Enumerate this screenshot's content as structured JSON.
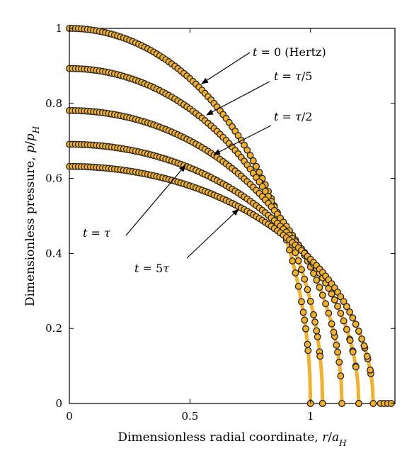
{
  "chart_data": {
    "type": "scatter",
    "title": "",
    "xlabel_parts": [
      "Dimensionless radial coordinate, ",
      "r",
      "/",
      "a",
      "H"
    ],
    "ylabel_parts": [
      "Dimensionless pressure, ",
      "p",
      "/",
      "p",
      "H"
    ],
    "xlim": [
      0,
      1.35
    ],
    "ylim": [
      0,
      1.0
    ],
    "x_ticks": [
      0,
      0.5,
      1
    ],
    "x_tick_labels": [
      "0",
      "0.5",
      "1"
    ],
    "y_ticks": [
      0,
      0.2,
      0.4,
      0.6,
      0.8,
      1.0
    ],
    "y_tick_labels": [
      "0",
      "0.2",
      "0.4",
      "0.6",
      "0.8",
      "1"
    ],
    "grid": false,
    "line_color": "#f2b02b",
    "marker_edge_color": "#222222",
    "series": [
      {
        "label_parts": [
          "t",
          " = 0 (Hertz)"
        ],
        "p0": 1.0,
        "a": 1.0
      },
      {
        "label_parts": [
          "t",
          " = ",
          "τ",
          "/5"
        ],
        "p0": 0.893,
        "a": 1.05
      },
      {
        "label_parts": [
          "t",
          " = ",
          "τ",
          "/2"
        ],
        "p0": 0.781,
        "a": 1.13
      },
      {
        "label_parts": [
          "t",
          " = ",
          "τ"
        ],
        "p0": 0.691,
        "a": 1.2
      },
      {
        "label_parts": [
          "t",
          " = 5",
          "τ"
        ],
        "p0": 0.632,
        "a": 1.26
      }
    ]
  }
}
